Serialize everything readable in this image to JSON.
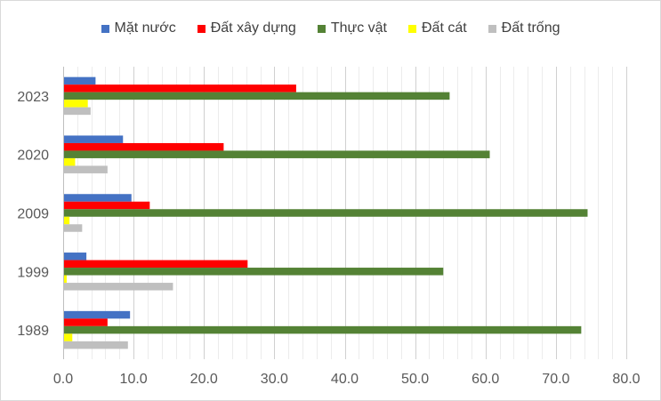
{
  "chart_data": {
    "type": "bar",
    "orientation": "horizontal",
    "title": "",
    "xlabel": "",
    "ylabel": "",
    "categories": [
      "1989",
      "1999",
      "2009",
      "2020",
      "2023"
    ],
    "xlim": [
      0,
      80
    ],
    "x_ticks": [
      "0.0",
      "10.0",
      "20.0",
      "30.0",
      "40.0",
      "50.0",
      "60.0",
      "70.0",
      "80.0"
    ],
    "grid": "vertical major and minor gridlines",
    "legend_position": "top",
    "series": [
      {
        "name": "Mặt nước",
        "color": "#4472C4",
        "values": [
          9.5,
          3.3,
          9.7,
          8.5,
          4.6
        ]
      },
      {
        "name": "Đất xây dựng",
        "color": "#FF0000",
        "values": [
          6.3,
          26.2,
          12.3,
          22.8,
          33.1
        ]
      },
      {
        "name": "Thực vật",
        "color": "#548235",
        "values": [
          73.6,
          54.0,
          74.5,
          60.6,
          54.9
        ]
      },
      {
        "name": "Đất cát",
        "color": "#FFFF00",
        "values": [
          1.3,
          0.5,
          0.9,
          1.7,
          3.5
        ]
      },
      {
        "name": "Đất trống",
        "color": "#BFBFBF",
        "values": [
          9.2,
          15.6,
          2.7,
          6.3,
          3.9
        ]
      }
    ]
  }
}
